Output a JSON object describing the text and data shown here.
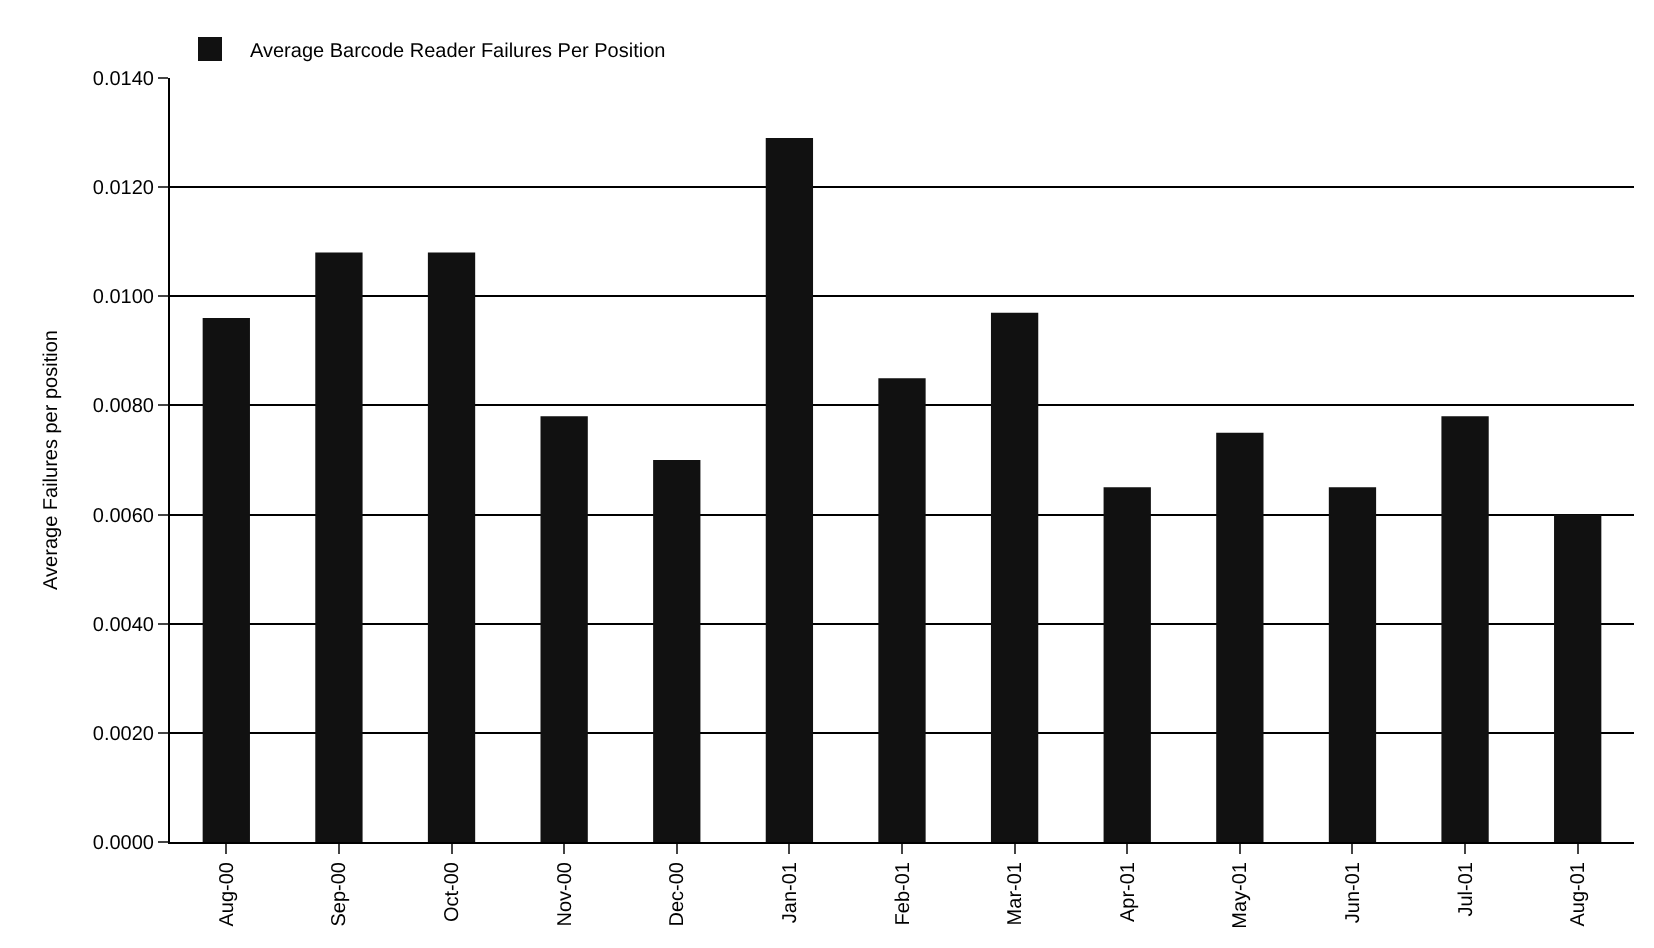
{
  "chart_data": {
    "type": "bar",
    "ylabel": "Average Failures per position",
    "categories": [
      "Aug-00",
      "Sep-00",
      "Oct-00",
      "Nov-00",
      "Dec-00",
      "Jan-01",
      "Feb-01",
      "Mar-01",
      "Apr-01",
      "May-01",
      "Jun-01",
      "Jul-01",
      "Aug-01"
    ],
    "series": [
      {
        "name": "Average Barcode Reader Failures Per Position",
        "color": "#111111",
        "values": [
          0.0096,
          0.0108,
          0.0108,
          0.0078,
          0.007,
          0.0129,
          0.0085,
          0.0097,
          0.0065,
          0.0075,
          0.0065,
          0.0078,
          0.006
        ]
      }
    ],
    "ylim": [
      0,
      0.014
    ],
    "yticks": [
      {
        "value": 0,
        "label": "0.0000"
      },
      {
        "value": 0.002,
        "label": "0.0020"
      },
      {
        "value": 0.004,
        "label": "0.0040"
      },
      {
        "value": 0.006,
        "label": "0.0060"
      },
      {
        "value": 0.008,
        "label": "0.0080"
      },
      {
        "value": 0.01,
        "label": "0.0100"
      },
      {
        "value": 0.012,
        "label": "0.0120"
      },
      {
        "value": 0.014,
        "label": "0.0140"
      }
    ],
    "grid": "y",
    "legend": "top left"
  }
}
